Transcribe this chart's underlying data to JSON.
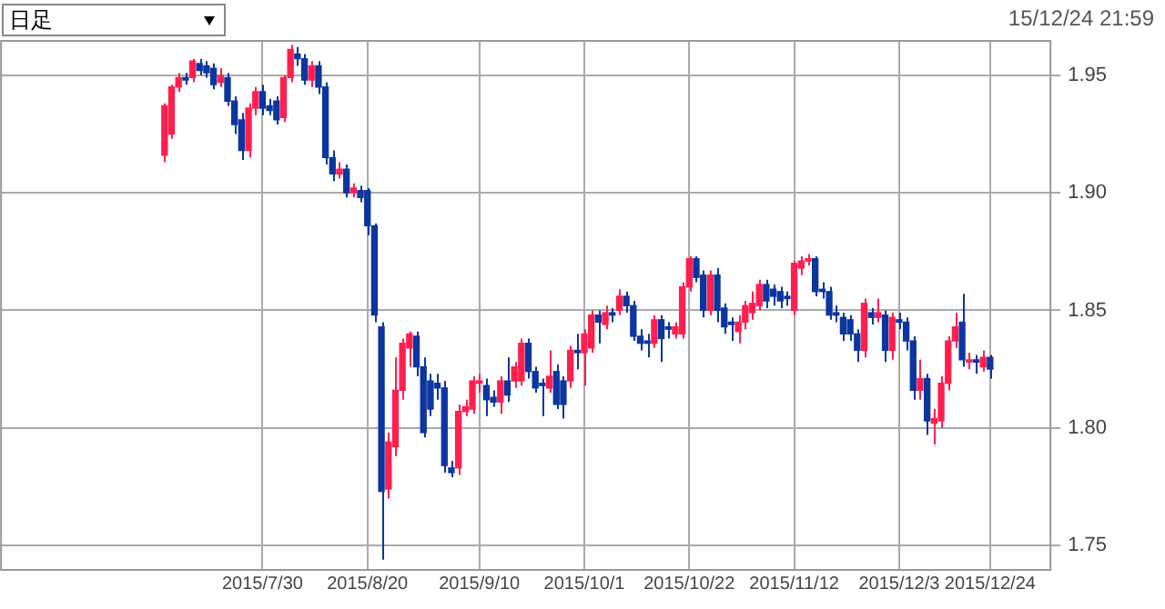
{
  "chart_data": {
    "type": "candlestick",
    "annotations": [
      "日足",
      "15/12/24 21:59"
    ],
    "categories": [
      null,
      null,
      null,
      null,
      null,
      null,
      null,
      null,
      null,
      null,
      null,
      null,
      null,
      null,
      null,
      null,
      null,
      null,
      null,
      null,
      null,
      null,
      null,
      null,
      null,
      null,
      null,
      null,
      null,
      null,
      null,
      null,
      null,
      null,
      null,
      null,
      null,
      "2015/7/30",
      null,
      null,
      null,
      null,
      null,
      null,
      null,
      null,
      null,
      null,
      null,
      null,
      null,
      null,
      "2015/8/20",
      null,
      null,
      null,
      null,
      null,
      null,
      null,
      null,
      null,
      null,
      null,
      null,
      null,
      null,
      null,
      "2015/9/10",
      null,
      null,
      null,
      null,
      null,
      null,
      null,
      null,
      null,
      null,
      null,
      null,
      null,
      null,
      "2015/10/1",
      null,
      null,
      null,
      null,
      null,
      null,
      null,
      null,
      null,
      null,
      null,
      null,
      null,
      null,
      "2015/10/22",
      null,
      null,
      null,
      null,
      null,
      null,
      null,
      null,
      null,
      null,
      null,
      null,
      null,
      null,
      "2015/11/12",
      null,
      null,
      null,
      null,
      null,
      null,
      null,
      null,
      null,
      null,
      null,
      null,
      null,
      null,
      "2015/12/3",
      null,
      null,
      null,
      null,
      null,
      null,
      null,
      null,
      null,
      null,
      null,
      null,
      "2015/12/24",
      null,
      null,
      null,
      null,
      null,
      null,
      null,
      null
    ],
    "colors": [
      null,
      null,
      null,
      null,
      null,
      null,
      null,
      null,
      null,
      null,
      null,
      null,
      null,
      null,
      null,
      null,
      null,
      null,
      null,
      null,
      null,
      null,
      null,
      "#ff1f4f",
      "#ff1f4f",
      "#ff1f4f",
      "#0d35a0",
      "#ff1f4f",
      "#0d35a0",
      "#0d35a0",
      "#0d35a0",
      "#ff1f4f",
      "#0d35a0",
      "#0d35a0",
      "#0d35a0",
      "#ff1f4f",
      "#ff1f4f",
      "#0d35a0",
      "#0d35a0",
      "#0d35a0",
      "#ff1f4f",
      "#ff1f4f",
      "#0d35a0",
      "#0d35a0",
      "#ff1f4f",
      "#0d35a0",
      "#0d35a0",
      "#0d35a0",
      "#ff1f4f",
      "#0d35a0",
      "#ff1f4f",
      "#0d35a0",
      "#0d35a0",
      "#0d35a0",
      "#0d35a0",
      "#ff1f4f",
      "#ff1f4f",
      "#ff1f4f",
      "#ff1f4f",
      "#0d35a0",
      "#0d35a0",
      "#0d35a0",
      "#0d35a0",
      "#0d35a0",
      "#0d35a0",
      "#ff1f4f",
      "#ff1f4f",
      "#ff1f4f",
      "#ff1f4f",
      "#0d35a0",
      "#0d35a0",
      "#ff1f4f",
      "#0d35a0",
      "#ff1f4f",
      "#ff1f4f",
      "#0d35a0",
      "#0d35a0",
      "#0d35a0",
      "#ff1f4f",
      "#0d35a0",
      "#0d35a0",
      "#ff1f4f",
      "#0d35a0",
      "#ff1f4f",
      "#ff1f4f",
      "#0d35a0",
      "#ff1f4f",
      "#0d35a0",
      "#ff1f4f",
      "#0d35a0",
      "#0d35a0",
      "#0d35a0",
      "#0d35a0",
      "#ff1f4f",
      "#0d35a0",
      "#0d35a0",
      "#ff1f4f",
      "#ff1f4f",
      "#ff1f4f",
      "#0d35a0",
      "#0d35a0",
      "#ff1f4f",
      "#0d35a0",
      "#0d35a0",
      "#0d35a0",
      "#ff1f4f",
      "#ff1f4f",
      "#ff1f4f",
      "#ff1f4f",
      "#0d35a0",
      "#0d35a0",
      "#0d35a0",
      "#0d35a0",
      "#ff1f4f",
      "#ff1f4f",
      "#ff1f4f",
      "#0d35a0",
      "#0d35a0",
      "#0d35a0",
      "#0d35a0",
      "#0d35a0",
      "#0d35a0",
      "#0d35a0",
      "#ff1f4f",
      "#0d35a0",
      "#ff1f4f",
      "#0d35a0",
      "#ff1f4f",
      "#0d35a0",
      "#0d35a0",
      "#0d35a0",
      "#ff1f4f",
      "#0d35a0",
      "#ff1f4f",
      "#ff1f4f",
      "#ff1f4f",
      "#ff1f4f",
      "#0d35a0",
      "#ff1f4f",
      "#0d35a0",
      "#ff1f4f",
      "#0d35a0",
      null,
      null,
      null,
      null,
      null,
      null,
      null,
      null
    ],
    "ohlc": [
      null,
      null,
      null,
      null,
      null,
      null,
      null,
      null,
      null,
      null,
      null,
      null,
      null,
      null,
      null,
      null,
      null,
      null,
      null,
      null,
      null,
      null,
      null,
      [
        1.916,
        1.938,
        1.913,
        1.937
      ],
      [
        1.925,
        1.946,
        1.923,
        1.945
      ],
      [
        1.945,
        1.951,
        1.943,
        1.949
      ],
      [
        1.949,
        1.951,
        1.946,
        1.948
      ],
      [
        1.949,
        1.957,
        1.947,
        1.956
      ],
      [
        1.955,
        1.957,
        1.95,
        1.952
      ],
      [
        1.954,
        1.956,
        1.949,
        1.951
      ],
      [
        1.953,
        1.955,
        1.944,
        1.946
      ],
      [
        1.947,
        1.953,
        1.945,
        1.95
      ],
      [
        1.949,
        1.951,
        1.937,
        1.939
      ],
      [
        1.939,
        1.941,
        1.925,
        1.929
      ],
      [
        1.931,
        1.934,
        1.914,
        1.918
      ],
      [
        1.918,
        1.938,
        1.915,
        1.936
      ],
      [
        1.936,
        1.945,
        1.933,
        1.943
      ],
      [
        1.943,
        1.946,
        1.933,
        1.936
      ],
      [
        1.937,
        1.94,
        1.933,
        1.935
      ],
      [
        1.939,
        1.941,
        1.929,
        1.931
      ],
      [
        1.932,
        1.95,
        1.93,
        1.949
      ],
      [
        1.949,
        1.963,
        1.947,
        1.961
      ],
      [
        1.959,
        1.962,
        1.954,
        1.957
      ],
      [
        1.957,
        1.959,
        1.946,
        1.948
      ],
      [
        1.948,
        1.956,
        1.945,
        1.954
      ],
      [
        1.954,
        1.956,
        1.942,
        1.945
      ],
      [
        1.945,
        1.947,
        1.912,
        1.915
      ],
      [
        1.915,
        1.918,
        1.905,
        1.908
      ],
      [
        1.908,
        1.913,
        1.906,
        1.91
      ],
      [
        1.91,
        1.912,
        1.898,
        1.9
      ],
      [
        1.9,
        1.904,
        1.898,
        1.902
      ],
      [
        1.901,
        1.903,
        1.896,
        1.898
      ],
      [
        1.901,
        1.902,
        1.882,
        1.886
      ],
      [
        1.886,
        1.887,
        1.845,
        1.848
      ],
      [
        1.843,
        1.845,
        1.744,
        1.773
      ],
      [
        1.774,
        1.798,
        1.77,
        1.794
      ],
      [
        1.792,
        1.83,
        1.788,
        1.816
      ],
      [
        1.816,
        1.838,
        1.812,
        1.836
      ],
      [
        1.834,
        1.841,
        1.826,
        1.84
      ],
      [
        1.839,
        1.841,
        1.822,
        1.826
      ],
      [
        1.826,
        1.83,
        1.796,
        1.798
      ],
      [
        1.82,
        1.823,
        1.805,
        1.808
      ],
      [
        1.819,
        1.823,
        1.812,
        1.817
      ],
      [
        1.817,
        1.82,
        1.781,
        1.784
      ],
      [
        1.783,
        1.786,
        1.779,
        1.781
      ],
      [
        1.783,
        1.81,
        1.78,
        1.807
      ],
      [
        1.807,
        1.812,
        1.805,
        1.809
      ],
      [
        1.808,
        1.822,
        1.806,
        1.82
      ],
      [
        1.819,
        1.823,
        1.815,
        1.82
      ],
      [
        1.818,
        1.821,
        1.805,
        1.812
      ],
      [
        1.813,
        1.816,
        1.809,
        1.811
      ],
      [
        1.811,
        1.822,
        1.806,
        1.82
      ],
      [
        1.82,
        1.83,
        1.811,
        1.814
      ],
      [
        1.82,
        1.828,
        1.817,
        1.826
      ],
      [
        1.82,
        1.838,
        1.818,
        1.836
      ],
      [
        1.836,
        1.838,
        1.821,
        1.824
      ],
      [
        1.824,
        1.826,
        1.815,
        1.817
      ],
      [
        1.819,
        1.821,
        1.805,
        1.818
      ],
      [
        1.817,
        1.833,
        1.815,
        1.822
      ],
      [
        1.824,
        1.827,
        1.808,
        1.81
      ],
      [
        1.82,
        1.822,
        1.804,
        1.81
      ],
      [
        1.82,
        1.835,
        1.817,
        1.833
      ],
      [
        1.833,
        1.84,
        1.825,
        1.832
      ],
      [
        1.832,
        1.842,
        1.818,
        1.84
      ],
      [
        1.834,
        1.85,
        1.832,
        1.848
      ],
      [
        1.848,
        1.85,
        1.836,
        1.845
      ],
      [
        1.844,
        1.852,
        1.842,
        1.849
      ],
      [
        1.849,
        1.851,
        1.845,
        1.848
      ],
      [
        1.85,
        1.859,
        1.848,
        1.856
      ],
      [
        1.856,
        1.858,
        1.849,
        1.852
      ],
      [
        1.852,
        1.854,
        1.837,
        1.839
      ],
      [
        1.839,
        1.842,
        1.833,
        1.836
      ],
      [
        1.837,
        1.84,
        1.83,
        1.836
      ],
      [
        1.836,
        1.848,
        1.834,
        1.846
      ],
      [
        1.846,
        1.848,
        1.828,
        1.838
      ],
      [
        1.843,
        1.845,
        1.838,
        1.842
      ],
      [
        1.84,
        1.845,
        1.838,
        1.843
      ],
      [
        1.84,
        1.862,
        1.838,
        1.86
      ],
      [
        1.86,
        1.873,
        1.858,
        1.872
      ],
      [
        1.872,
        1.873,
        1.862,
        1.864
      ],
      [
        1.865,
        1.867,
        1.847,
        1.85
      ],
      [
        1.85,
        1.867,
        1.848,
        1.865
      ],
      [
        1.865,
        1.868,
        1.845,
        1.85
      ],
      [
        1.851,
        1.853,
        1.84,
        1.843
      ],
      [
        1.845,
        1.847,
        1.837,
        1.844
      ],
      [
        1.841,
        1.848,
        1.836,
        1.845
      ],
      [
        1.845,
        1.854,
        1.842,
        1.852
      ],
      [
        1.849,
        1.858,
        1.846,
        1.853
      ],
      [
        1.852,
        1.863,
        1.85,
        1.861
      ],
      [
        1.861,
        1.863,
        1.851,
        1.854
      ],
      [
        1.859,
        1.861,
        1.852,
        1.856
      ],
      [
        1.858,
        1.86,
        1.851,
        1.854
      ],
      [
        1.856,
        1.858,
        1.852,
        1.855
      ],
      [
        1.85,
        1.871,
        1.848,
        1.87
      ],
      [
        1.868,
        1.873,
        1.865,
        1.871
      ],
      [
        1.871,
        1.874,
        1.869,
        1.872
      ],
      [
        1.872,
        1.873,
        1.856,
        1.858
      ],
      [
        1.859,
        1.862,
        1.855,
        1.858
      ],
      [
        1.858,
        1.86,
        1.846,
        1.848
      ],
      [
        1.849,
        1.852,
        1.845,
        1.848
      ],
      [
        1.847,
        1.849,
        1.837,
        1.84
      ],
      [
        1.846,
        1.848,
        1.837,
        1.84
      ],
      [
        1.84,
        1.842,
        1.828,
        1.833
      ],
      [
        1.833,
        1.855,
        1.83,
        1.853
      ],
      [
        1.849,
        1.851,
        1.844,
        1.847
      ],
      [
        1.847,
        1.855,
        1.845,
        1.849
      ],
      [
        1.848,
        1.85,
        1.828,
        1.833
      ],
      [
        1.833,
        1.849,
        1.829,
        1.847
      ],
      [
        1.846,
        1.849,
        1.842,
        1.845
      ],
      [
        1.845,
        1.847,
        1.833,
        1.837
      ],
      [
        1.837,
        1.839,
        1.812,
        1.816
      ],
      [
        1.816,
        1.829,
        1.812,
        1.821
      ],
      [
        1.821,
        1.823,
        1.797,
        1.803
      ],
      [
        1.802,
        1.808,
        1.793,
        1.804
      ],
      [
        1.803,
        1.822,
        1.8,
        1.819
      ],
      [
        1.819,
        1.839,
        1.816,
        1.837
      ],
      [
        1.837,
        1.849,
        1.834,
        1.843
      ],
      [
        1.845,
        1.857,
        1.826,
        1.829
      ],
      [
        1.828,
        1.832,
        1.825,
        1.829
      ],
      [
        1.829,
        1.831,
        1.823,
        1.828
      ],
      [
        1.826,
        1.833,
        1.824,
        1.83
      ],
      [
        1.83,
        1.831,
        1.821,
        1.825
      ],
      null,
      null,
      null,
      null,
      null,
      null,
      null,
      null
    ],
    "ylim": [
      1.74,
      1.965
    ],
    "yticks": [
      {
        "value": 1.75,
        "label": "1.75"
      },
      {
        "value": 1.8,
        "label": "1.80"
      },
      {
        "value": 1.85,
        "label": "1.85"
      },
      {
        "value": 1.9,
        "label": "1.90"
      },
      {
        "value": 1.95,
        "label": "1.95"
      }
    ],
    "grid": true,
    "legend": false
  }
}
